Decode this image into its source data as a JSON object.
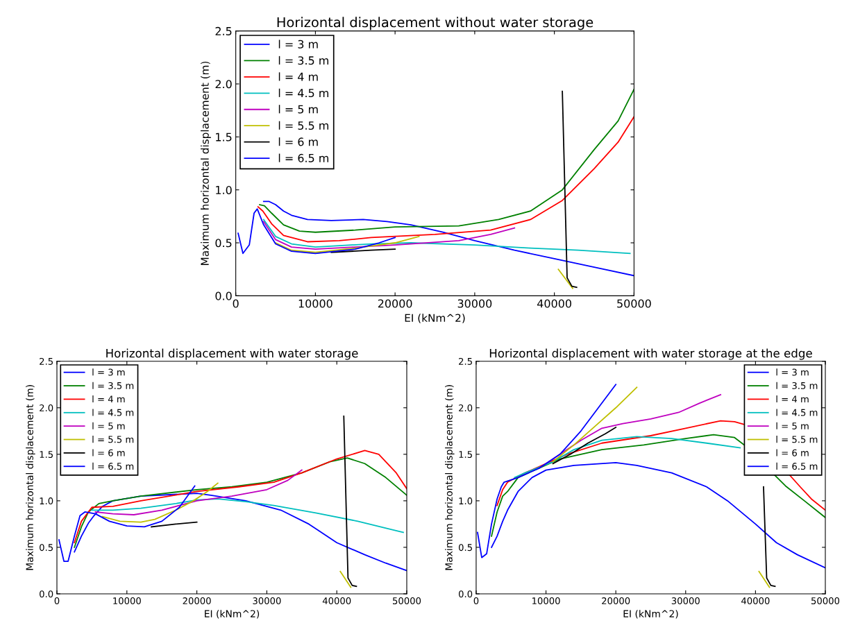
{
  "chart_data": [
    {
      "type": "line",
      "title": "Horizontal displacement without water storage",
      "xlabel": "EI (kNm^2)",
      "ylabel": "Maximum horizontal displacement (m)",
      "xlim": [
        0,
        50000
      ],
      "xticks": [
        0,
        10000,
        20000,
        30000,
        40000,
        50000
      ],
      "ylim": [
        0,
        2.5
      ],
      "yticks": [
        {
          "value": 0,
          "label": "0.0"
        },
        {
          "value": 0.5,
          "label": "0.5"
        },
        {
          "value": 1,
          "label": "1.0"
        },
        {
          "value": 1.5,
          "label": "1.5"
        },
        {
          "value": 2,
          "label": "2.0"
        },
        {
          "value": 2.5,
          "label": "2.5"
        }
      ],
      "legend": "top left",
      "series": [
        {
          "name": "l = 3 m",
          "color": "#0000ff",
          "x": [
            3500,
            4200,
            5000,
            6000,
            7000,
            9000,
            12000,
            16000,
            19000,
            22000,
            26000,
            30000,
            35000,
            40000,
            45000,
            50000
          ],
          "values": [
            0.89,
            0.89,
            0.86,
            0.8,
            0.76,
            0.72,
            0.71,
            0.72,
            0.7,
            0.67,
            0.6,
            0.52,
            0.43,
            0.35,
            0.27,
            0.19
          ]
        },
        {
          "name": "l = 3.5 m",
          "color": "#008000",
          "x": [
            3000,
            3600,
            4500,
            6000,
            8000,
            10000,
            15000,
            20000,
            28000,
            33000,
            37000,
            41000,
            45000,
            48000,
            50000
          ],
          "values": [
            0.86,
            0.85,
            0.78,
            0.67,
            0.61,
            0.6,
            0.62,
            0.65,
            0.66,
            0.72,
            0.8,
            1.0,
            1.38,
            1.65,
            1.95
          ]
        },
        {
          "name": "l = 4 m",
          "color": "#ff0000",
          "x": [
            2800,
            3400,
            4500,
            6000,
            9000,
            13000,
            17000,
            25000,
            32000,
            37000,
            41000,
            45000,
            48000,
            50000
          ],
          "values": [
            0.84,
            0.8,
            0.68,
            0.57,
            0.51,
            0.52,
            0.55,
            0.58,
            0.62,
            0.72,
            0.9,
            1.2,
            1.45,
            1.69
          ]
        },
        {
          "name": "l = 4.5 m",
          "color": "#00bfbf",
          "x": [
            3500,
            5000,
            7000,
            10000,
            17000,
            22000,
            30000,
            37000,
            43000,
            49500
          ],
          "values": [
            0.72,
            0.56,
            0.49,
            0.46,
            0.49,
            0.5,
            0.48,
            0.45,
            0.43,
            0.4
          ]
        },
        {
          "name": "l = 5 m",
          "color": "#bf00bf",
          "x": [
            3500,
            5000,
            7000,
            10000,
            15000,
            20000,
            28000,
            32000,
            35000
          ],
          "values": [
            0.7,
            0.53,
            0.46,
            0.44,
            0.46,
            0.48,
            0.52,
            0.58,
            0.64
          ]
        },
        {
          "name": "l = 5.5 m",
          "color": "#bfbf00",
          "x": [
            5000,
            7000,
            10000,
            15000,
            20000,
            23000,
            30000,
            40500,
            41500,
            42300
          ],
          "values": [
            0.5,
            0.43,
            0.41,
            0.45,
            0.5,
            0.56,
            null,
            0.25,
            0.15,
            0.07
          ]
        },
        {
          "name": "l = 6 m",
          "color": "#000000",
          "x": [
            12000,
            17000,
            20000,
            30000,
            41000,
            41600,
            42200,
            42800
          ],
          "values": [
            0.41,
            0.43,
            0.44,
            null,
            1.93,
            0.17,
            0.09,
            0.08
          ]
        },
        {
          "name": "l = 6.5 m",
          "color": "#0000ff",
          "x": [
            300,
            900,
            1700,
            2300,
            2700,
            3500,
            5000,
            7000,
            10000,
            15000,
            18000,
            20000
          ],
          "values": [
            0.59,
            0.4,
            0.48,
            0.78,
            0.82,
            0.67,
            0.49,
            0.42,
            0.4,
            0.44,
            0.5,
            0.55
          ]
        }
      ]
    },
    {
      "type": "line",
      "title": "Horizontal displacement with water storage",
      "xlabel": "EI (kNm^2)",
      "ylabel": "Maximum horizontal displacement (m)",
      "xlim": [
        0,
        50000
      ],
      "xticks": [
        0,
        10000,
        20000,
        30000,
        40000,
        50000
      ],
      "ylim": [
        0,
        2.5
      ],
      "yticks": [
        {
          "value": 0,
          "label": "0.0"
        },
        {
          "value": 0.5,
          "label": "0.5"
        },
        {
          "value": 1,
          "label": "1.0"
        },
        {
          "value": 1.5,
          "label": "1.5"
        },
        {
          "value": 2,
          "label": "2.0"
        },
        {
          "value": 2.5,
          "label": "2.5"
        }
      ],
      "legend": "top left",
      "series": [
        {
          "name": "l = 3 m",
          "color": "#0000ff",
          "x": [
            2500,
            3500,
            4500,
            5300,
            6500,
            8000,
            12000,
            20000,
            22000,
            27000,
            32000,
            36000,
            40000,
            44000,
            47000,
            50000
          ],
          "values": [
            0.45,
            0.62,
            0.76,
            0.84,
            0.94,
            1.0,
            1.05,
            1.08,
            1.06,
            1.0,
            0.9,
            0.75,
            0.55,
            0.42,
            0.33,
            0.25
          ]
        },
        {
          "name": "l = 3.5 m",
          "color": "#008000",
          "x": [
            2500,
            3500,
            4500,
            6000,
            8000,
            12000,
            20000,
            25000,
            30000,
            35000,
            39000,
            41500,
            44000,
            47000,
            50000
          ],
          "values": [
            0.5,
            0.72,
            0.88,
            0.97,
            1.0,
            1.05,
            1.12,
            1.15,
            1.2,
            1.3,
            1.42,
            1.46,
            1.4,
            1.25,
            1.06
          ]
        },
        {
          "name": "l = 4 m",
          "color": "#ff0000",
          "x": [
            2500,
            3500,
            5000,
            8000,
            12000,
            20000,
            26000,
            31000,
            35000,
            40000,
            44000,
            46000,
            48500,
            50000
          ],
          "values": [
            0.55,
            0.78,
            0.93,
            0.94,
            1.0,
            1.1,
            1.15,
            1.2,
            1.3,
            1.45,
            1.54,
            1.5,
            1.3,
            1.13
          ]
        },
        {
          "name": "l = 4.5 m",
          "color": "#00bfbf",
          "x": [
            5000,
            8000,
            12000,
            17000,
            20000,
            23000,
            27000,
            31000,
            37000,
            43000,
            49500
          ],
          "values": [
            0.9,
            0.9,
            0.92,
            0.97,
            1.01,
            1.02,
            0.99,
            0.95,
            0.87,
            0.78,
            0.66
          ]
        },
        {
          "name": "l = 5 m",
          "color": "#bf00bf",
          "x": [
            5500,
            8000,
            11000,
            15000,
            20000,
            25000,
            30000,
            33000,
            35000
          ],
          "values": [
            0.88,
            0.86,
            0.85,
            0.9,
            1.0,
            1.05,
            1.12,
            1.22,
            1.33
          ]
        },
        {
          "name": "l = 5.5 m",
          "color": "#bfbf00",
          "x": [
            6500,
            9000,
            12000,
            14000,
            17000,
            19500,
            21500,
            23000,
            30000,
            40500,
            42000
          ],
          "values": [
            0.83,
            0.78,
            0.77,
            0.8,
            0.9,
            1.0,
            1.1,
            1.19,
            null,
            0.24,
            0.07
          ]
        },
        {
          "name": "l = 6 m",
          "color": "#000000",
          "x": [
            13500,
            17000,
            20000,
            30000,
            41000,
            41600,
            42200,
            42800
          ],
          "values": [
            0.72,
            0.75,
            0.77,
            null,
            1.91,
            0.17,
            0.09,
            0.08
          ]
        },
        {
          "name": "l = 6.5 m",
          "color": "#0000ff",
          "x": [
            300,
            1000,
            1600,
            2500,
            3300,
            4000,
            5500,
            7500,
            10000,
            12500,
            15000,
            17500,
            19700
          ],
          "values": [
            0.58,
            0.35,
            0.35,
            0.62,
            0.84,
            0.88,
            0.86,
            0.78,
            0.73,
            0.72,
            0.78,
            0.93,
            1.16
          ]
        }
      ]
    },
    {
      "type": "line",
      "title": "Horizontal displacement with water storage at the edge",
      "xlabel": "EI (kNm^2)",
      "ylabel": "Maximum horizontal displacement (m)",
      "xlim": [
        0,
        50000
      ],
      "xticks": [
        0,
        10000,
        20000,
        30000,
        40000,
        50000
      ],
      "ylim": [
        0,
        2.5
      ],
      "yticks": [
        {
          "value": 0,
          "label": "0.0"
        },
        {
          "value": 0.5,
          "label": "0.5"
        },
        {
          "value": 1,
          "label": "1.0"
        },
        {
          "value": 1.5,
          "label": "1.5"
        },
        {
          "value": 2,
          "label": "2.0"
        },
        {
          "value": 2.5,
          "label": "2.5"
        }
      ],
      "legend": "top right",
      "series": [
        {
          "name": "l = 3 m",
          "color": "#0000ff",
          "x": [
            2200,
            3000,
            3800,
            4500,
            6000,
            8000,
            10000,
            14000,
            20000,
            23000,
            28000,
            33000,
            36000,
            40000,
            43000,
            46000,
            50000
          ],
          "values": [
            0.5,
            0.62,
            0.78,
            0.9,
            1.1,
            1.25,
            1.33,
            1.38,
            1.41,
            1.38,
            1.3,
            1.15,
            1.0,
            0.75,
            0.55,
            0.42,
            0.28
          ]
        },
        {
          "name": "l = 3.5 m",
          "color": "#008000",
          "x": [
            2200,
            3000,
            3800,
            4500,
            6000,
            9000,
            12000,
            18000,
            24000,
            30000,
            34000,
            37000,
            38400,
            44300,
            47000,
            50000
          ],
          "values": [
            0.62,
            0.88,
            1.05,
            1.1,
            1.25,
            1.35,
            1.45,
            1.55,
            1.6,
            1.67,
            1.71,
            1.68,
            1.6,
            1.16,
            1.0,
            0.82
          ]
        },
        {
          "name": "l = 4 m",
          "color": "#ff0000",
          "x": [
            3000,
            3800,
            4500,
            7000,
            10000,
            13000,
            18000,
            25000,
            30000,
            35000,
            37000,
            38400,
            46400,
            48000,
            50000
          ],
          "values": [
            0.95,
            1.12,
            1.2,
            1.3,
            1.4,
            1.5,
            1.62,
            1.7,
            1.78,
            1.86,
            1.85,
            1.82,
            1.15,
            1.02,
            0.9
          ]
        },
        {
          "name": "l = 4.5 m",
          "color": "#00bfbf",
          "x": [
            5500,
            7000,
            11000,
            14000,
            18000,
            23000,
            28000,
            33000,
            37800
          ],
          "values": [
            1.25,
            1.3,
            1.42,
            1.55,
            1.65,
            1.69,
            1.67,
            1.62,
            1.57
          ]
        },
        {
          "name": "l = 5 m",
          "color": "#bf00bf",
          "x": [
            9000,
            12000,
            15000,
            18000,
            21000,
            25000,
            29000,
            32000,
            35000
          ],
          "values": [
            1.35,
            1.5,
            1.65,
            1.78,
            1.83,
            1.88,
            1.95,
            2.05,
            2.14
          ]
        },
        {
          "name": "l = 5.5 m",
          "color": "#bfbf00",
          "x": [
            11000,
            14000,
            17000,
            20000,
            23000,
            30000,
            40500,
            42000
          ],
          "values": [
            1.42,
            1.6,
            1.8,
            2.0,
            2.22,
            null,
            0.24,
            0.07
          ]
        },
        {
          "name": "l = 6 m",
          "color": "#000000",
          "x": [
            11000,
            13500,
            16000,
            18500,
            20000,
            30000,
            41150,
            41600,
            42200,
            42800
          ],
          "values": [
            1.4,
            1.5,
            1.62,
            1.72,
            1.79,
            null,
            1.15,
            0.17,
            0.09,
            0.08
          ]
        },
        {
          "name": "l = 6.5 m",
          "color": "#0000ff",
          "x": [
            200,
            800,
            1500,
            2200,
            3000,
            3600,
            4000,
            6000,
            9000,
            12000,
            15000,
            17500,
            20000
          ],
          "values": [
            0.66,
            0.39,
            0.43,
            0.75,
            1.02,
            1.15,
            1.2,
            1.25,
            1.35,
            1.5,
            1.75,
            2.0,
            2.25
          ]
        }
      ]
    }
  ]
}
